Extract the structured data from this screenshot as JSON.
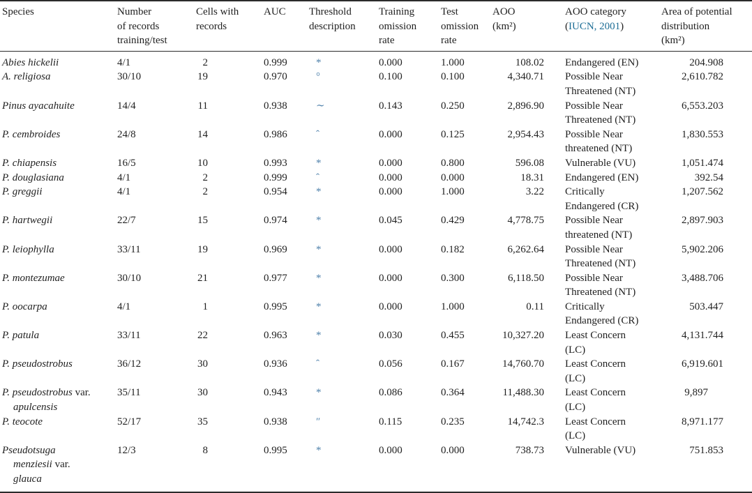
{
  "colors": {
    "text": "#1f1f1f",
    "link": "#1e6e96",
    "symbol": "#4f81ab",
    "rule": "#2b2b2b",
    "background": "#ffffff"
  },
  "table": {
    "header": [
      {
        "key": "species",
        "lines": [
          {
            "text": "Species"
          }
        ]
      },
      {
        "key": "records",
        "lines": [
          {
            "text": "Number"
          },
          {
            "text": "of records"
          },
          {
            "text": "training/test"
          }
        ]
      },
      {
        "key": "cells",
        "lines": [
          {
            "text": "Cells with"
          },
          {
            "text": "records"
          }
        ]
      },
      {
        "key": "auc",
        "lines": [
          {
            "text": "AUC"
          }
        ]
      },
      {
        "key": "threshold",
        "lines": [
          {
            "text": "Threshold"
          },
          {
            "text": "description"
          }
        ]
      },
      {
        "key": "training",
        "lines": [
          {
            "text": "Training"
          },
          {
            "text": "omission"
          },
          {
            "text": "rate"
          }
        ]
      },
      {
        "key": "test",
        "lines": [
          {
            "text": "Test"
          },
          {
            "text": "omission"
          },
          {
            "text": "rate"
          }
        ]
      },
      {
        "key": "aoo",
        "lines": [
          {
            "text": "AOO"
          },
          {
            "text": "(km²)"
          }
        ]
      },
      {
        "key": "category",
        "lines": [
          {
            "text": "AOO category"
          },
          {
            "pre": "(",
            "link": "IUCN, 2001",
            "post": ")"
          }
        ]
      },
      {
        "key": "area",
        "lines": [
          {
            "text": "Area of potential"
          },
          {
            "text": "distribution"
          },
          {
            "text": "(km²)"
          }
        ]
      }
    ],
    "rows": [
      {
        "species_lines": [
          [
            {
              "text": "Abies hickelii",
              "italic": true
            }
          ]
        ],
        "records": "4/1",
        "cells": "2",
        "auc": "0.999",
        "threshold": "*",
        "training": "0.000",
        "test": "1.000",
        "aoo": "108.02",
        "category_lines": [
          "Endangered (EN)"
        ],
        "area": "204.908"
      },
      {
        "species_lines": [
          [
            {
              "text": "A. religiosa",
              "italic": true
            }
          ]
        ],
        "records": "30/10",
        "cells": "19",
        "auc": "0.970",
        "threshold": "°",
        "training": "0.100",
        "test": "0.100",
        "aoo": "4,340.71",
        "category_lines": [
          "Possible Near",
          "Threatened (NT)"
        ],
        "area": "2,610.782"
      },
      {
        "species_lines": [
          [
            {
              "text": "Pinus ayacahuite",
              "italic": true
            }
          ]
        ],
        "records": "14/4",
        "cells": "11",
        "auc": "0.938",
        "threshold": "∼",
        "training": "0.143",
        "test": "0.250",
        "aoo": "2,896.90",
        "category_lines": [
          "Possible Near",
          "Threatened (NT)"
        ],
        "area": "6,553.203"
      },
      {
        "species_lines": [
          [
            {
              "text": "P. cembroides",
              "italic": true
            }
          ]
        ],
        "records": "24/8",
        "cells": "14",
        "auc": "0.986",
        "threshold": "ˆ",
        "training": "0.000",
        "test": "0.125",
        "aoo": "2,954.43",
        "category_lines": [
          "Possible Near",
          "threatened (NT)"
        ],
        "area": "1,830.553"
      },
      {
        "species_lines": [
          [
            {
              "text": "P. chiapensis",
              "italic": true
            }
          ]
        ],
        "records": "16/5",
        "cells": "10",
        "auc": "0.993",
        "threshold": "*",
        "training": "0.000",
        "test": "0.800",
        "aoo": "596.08",
        "category_lines": [
          "Vulnerable (VU)"
        ],
        "area": "1,051.474"
      },
      {
        "species_lines": [
          [
            {
              "text": "P. douglasiana",
              "italic": true
            }
          ]
        ],
        "records": "4/1",
        "cells": "2",
        "auc": "0.999",
        "threshold": "ˆ",
        "training": "0.000",
        "test": "0.000",
        "aoo": "18.31",
        "category_lines": [
          "Endangered (EN)"
        ],
        "area": "392.54"
      },
      {
        "species_lines": [
          [
            {
              "text": "P. greggii",
              "italic": true
            }
          ]
        ],
        "records": "4/1",
        "cells": "2",
        "auc": "0.954",
        "threshold": "*",
        "training": "0.000",
        "test": "1.000",
        "aoo": "3.22",
        "category_lines": [
          "Critically",
          "Endangered (CR)"
        ],
        "area": "1,207.562"
      },
      {
        "species_lines": [
          [
            {
              "text": "P. hartwegii",
              "italic": true
            }
          ]
        ],
        "records": "22/7",
        "cells": "15",
        "auc": "0.974",
        "threshold": "*",
        "training": "0.045",
        "test": "0.429",
        "aoo": "4,778.75",
        "category_lines": [
          "Possible Near",
          "threatened (NT)"
        ],
        "area": "2,897.903"
      },
      {
        "species_lines": [
          [
            {
              "text": "P. leiophylla",
              "italic": true
            }
          ]
        ],
        "records": "33/11",
        "cells": "19",
        "auc": "0.969",
        "threshold": "*",
        "training": "0.000",
        "test": "0.182",
        "aoo": "6,262.64",
        "category_lines": [
          "Possible Near",
          "Threatened (NT)"
        ],
        "area": "5,902.206"
      },
      {
        "species_lines": [
          [
            {
              "text": "P. montezumae",
              "italic": true
            }
          ]
        ],
        "records": "30/10",
        "cells": "21",
        "auc": "0.977",
        "threshold": "*",
        "training": "0.000",
        "test": "0.300",
        "aoo": "6,118.50",
        "category_lines": [
          "Possible Near",
          "Threatened (NT)"
        ],
        "area": "3,488.706"
      },
      {
        "species_lines": [
          [
            {
              "text": "P. oocarpa",
              "italic": true
            }
          ]
        ],
        "records": "4/1",
        "cells": "1",
        "auc": "0.995",
        "threshold": "*",
        "training": "0.000",
        "test": "1.000",
        "aoo": "0.11",
        "category_lines": [
          "Critically",
          "Endangered (CR)"
        ],
        "area": "503.447"
      },
      {
        "species_lines": [
          [
            {
              "text": "P. patula",
              "italic": true
            }
          ]
        ],
        "records": "33/11",
        "cells": "22",
        "auc": "0.963",
        "threshold": "*",
        "training": "0.030",
        "test": "0.455",
        "aoo": "10,327.20",
        "category_lines": [
          "Least Concern",
          "(LC)"
        ],
        "area": "4,131.744"
      },
      {
        "species_lines": [
          [
            {
              "text": "P. pseudostrobus",
              "italic": true
            }
          ]
        ],
        "records": "36/12",
        "cells": "30",
        "auc": "0.936",
        "threshold": "ˆ",
        "training": "0.056",
        "test": "0.167",
        "aoo": "14,760.70",
        "category_lines": [
          "Least Concern",
          "(LC)"
        ],
        "area": "6,919.601"
      },
      {
        "species_lines": [
          [
            {
              "text": "P. pseudostrobus",
              "italic": true
            },
            {
              "text": " var.",
              "italic": false
            }
          ],
          [
            {
              "text": "apulcensis",
              "italic": true
            }
          ]
        ],
        "records": "35/11",
        "cells": "30",
        "auc": "0.943",
        "threshold": "*",
        "training": "0.086",
        "test": "0.364",
        "aoo": "11,488.30",
        "category_lines": [
          "Least Concern",
          "(LC)"
        ],
        "area": "9,897"
      },
      {
        "species_lines": [
          [
            {
              "text": "P. teocote",
              "italic": true
            }
          ]
        ],
        "records": "52/17",
        "cells": "35",
        "auc": "0.938",
        "threshold": "″",
        "training": "0.115",
        "test": "0.235",
        "aoo": "14,742.3",
        "category_lines": [
          "Least Concern",
          "(LC)"
        ],
        "area": "8,971.177"
      },
      {
        "species_lines": [
          [
            {
              "text": "Pseudotsuga",
              "italic": true
            }
          ],
          [
            {
              "text": "menziesii",
              "italic": true
            },
            {
              "text": " var.",
              "italic": false
            }
          ],
          [
            {
              "text": "glauca",
              "italic": true
            }
          ]
        ],
        "records": "12/3",
        "cells": "8",
        "auc": "0.995",
        "threshold": "*",
        "training": "0.000",
        "test": "0.000",
        "aoo": "738.73",
        "category_lines": [
          "Vulnerable (VU)"
        ],
        "area": "751.853"
      }
    ]
  }
}
